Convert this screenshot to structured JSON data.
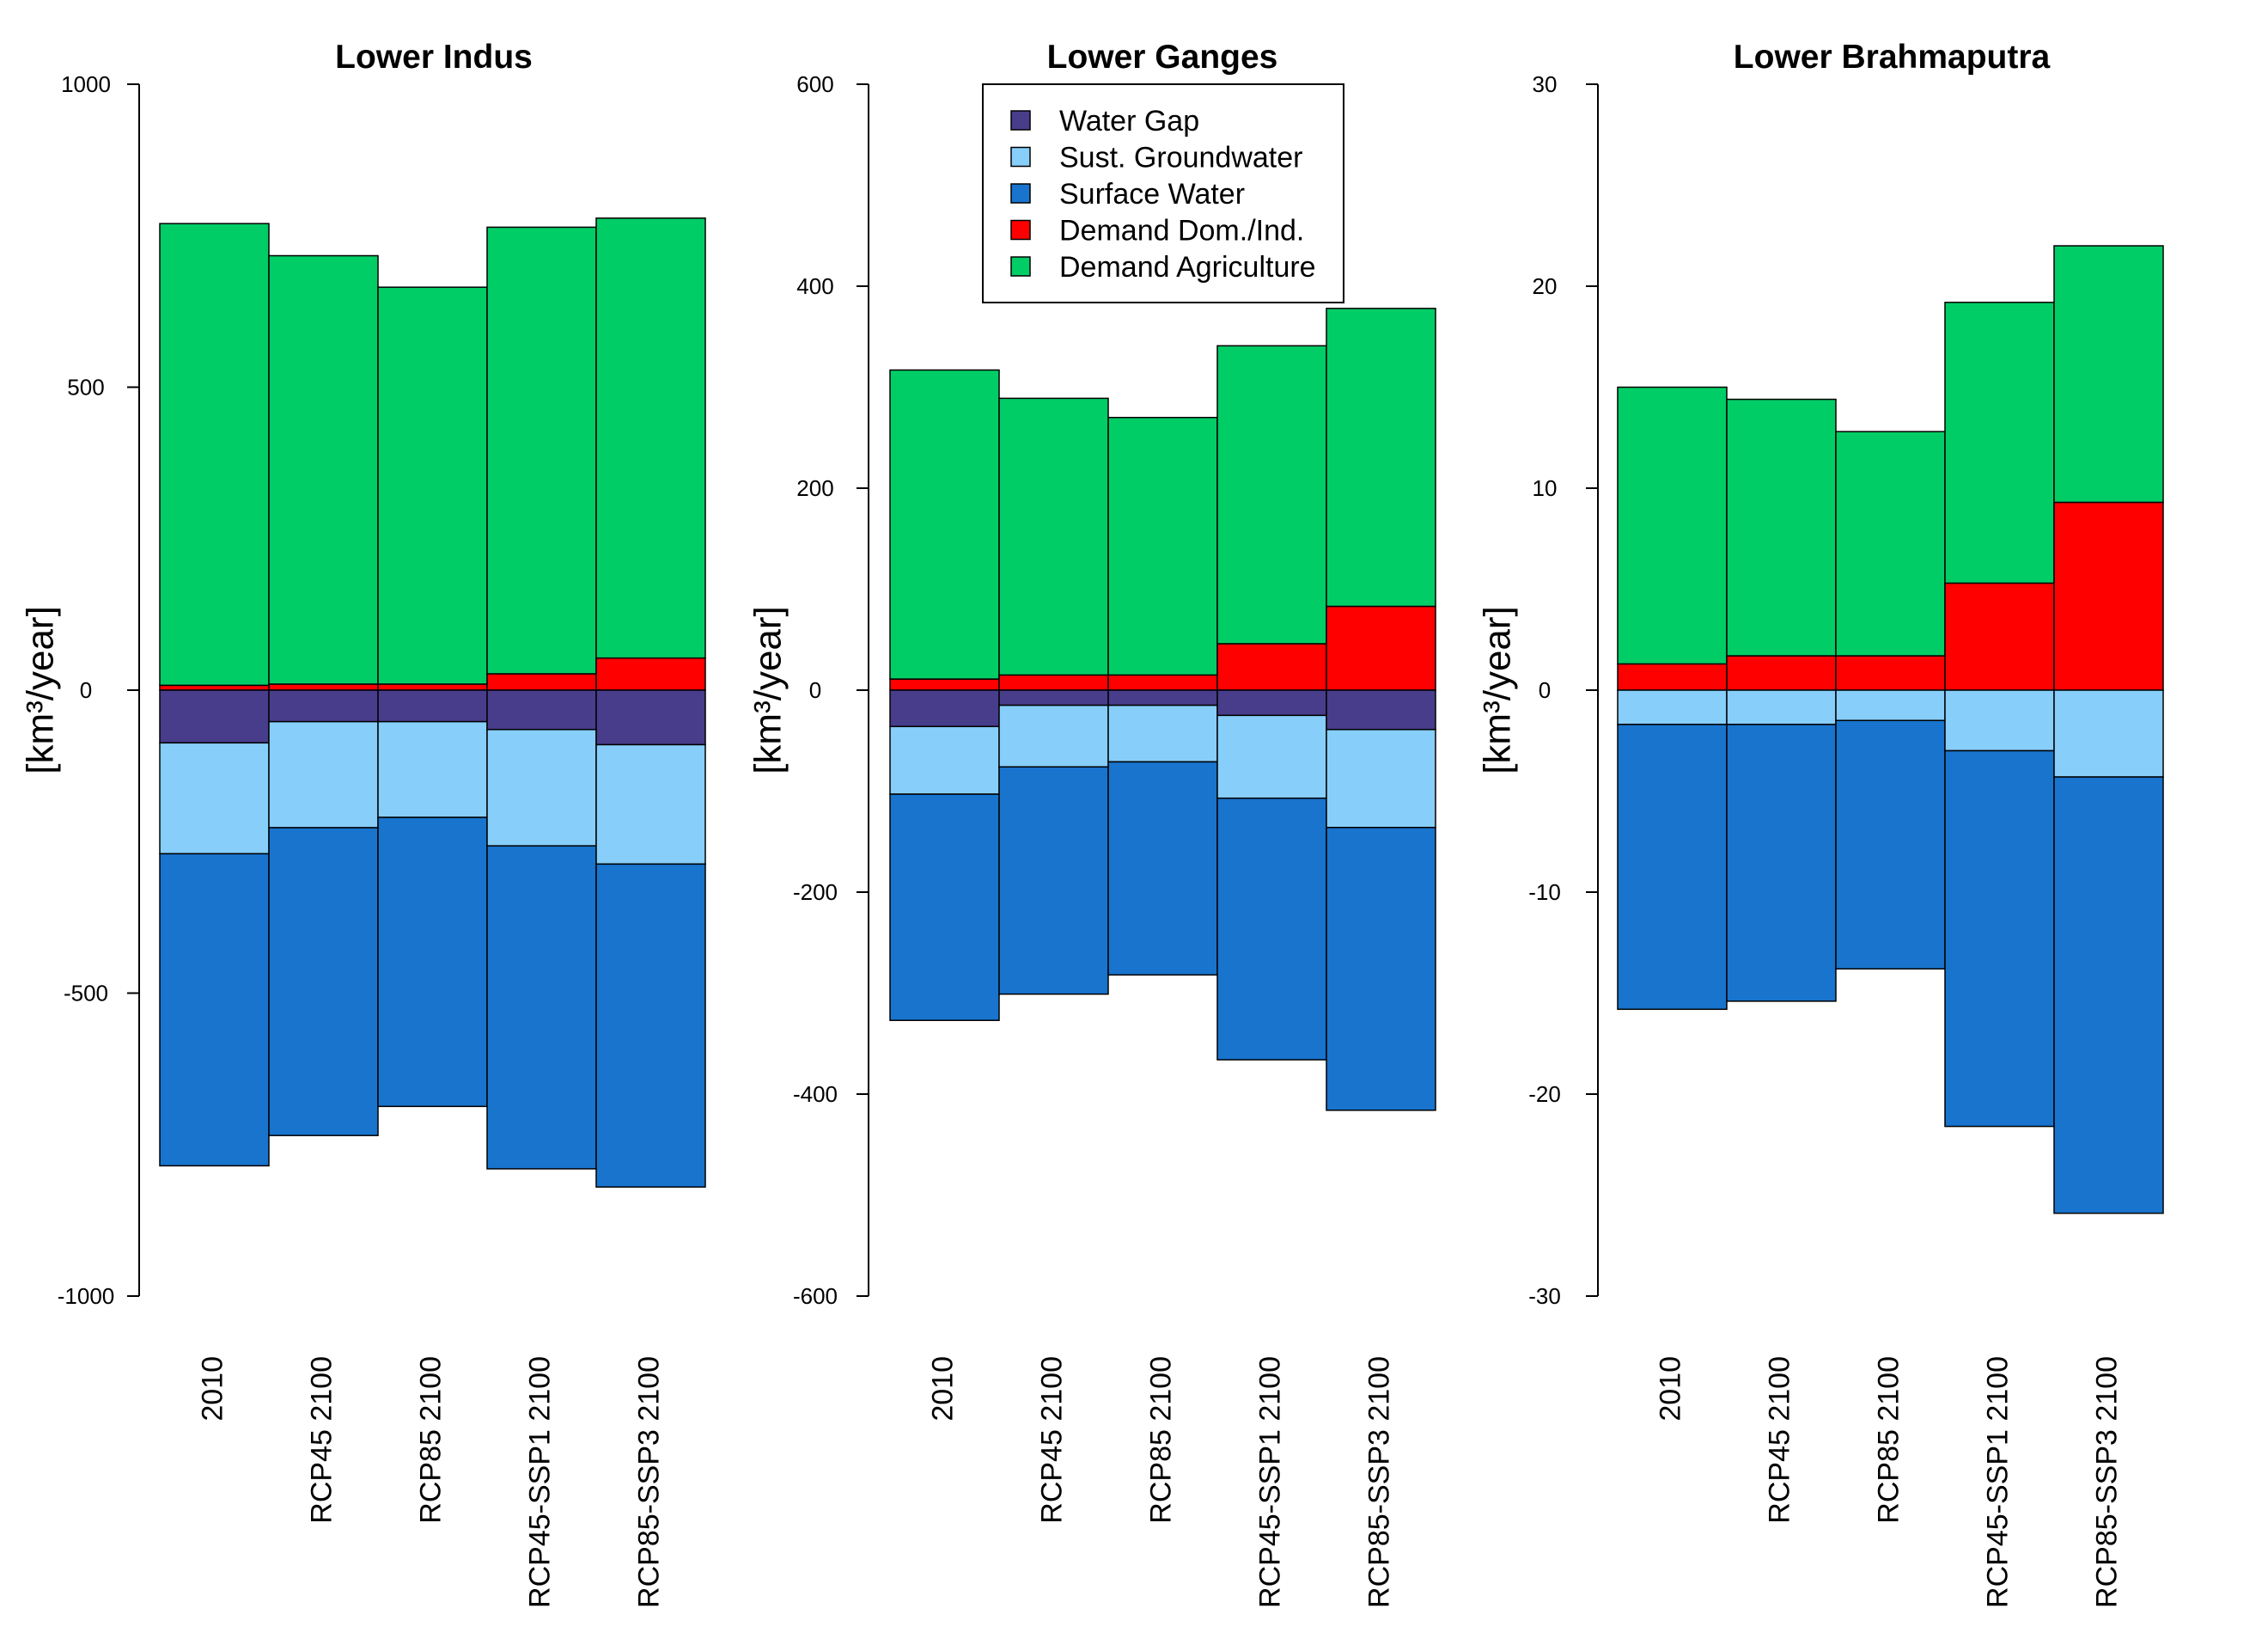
{
  "colors": {
    "water_gap": "#483D8B",
    "sust_groundwater": "#87CEFA",
    "surface_water": "#1874CD",
    "demand_dom_ind": "#FF0000",
    "demand_agriculture": "#00CD66"
  },
  "legend": {
    "entries": [
      {
        "key": "water_gap",
        "label": "Water Gap"
      },
      {
        "key": "sust_groundwater",
        "label": "Sust. Groundwater"
      },
      {
        "key": "surface_water",
        "label": "Surface Water"
      },
      {
        "key": "demand_dom_ind",
        "label": "Demand Dom./Ind."
      },
      {
        "key": "demand_agriculture",
        "label": "Demand Agriculture"
      }
    ]
  },
  "chart_data": [
    {
      "type": "bar",
      "stacked": true,
      "title": "Lower Indus",
      "ylabel": "[km³/year]",
      "ylim": [
        -1000,
        1000
      ],
      "yticks": [
        -1000,
        -500,
        0,
        500,
        1000
      ],
      "categories": [
        "2010",
        "RCP45 2100",
        "RCP85 2100",
        "RCP45-SSP1 2100",
        "RCP85-SSP3 2100"
      ],
      "series": [
        {
          "name": "Demand Dom./Ind.",
          "key": "demand_dom_ind",
          "values": [
            8,
            10,
            10,
            27,
            53
          ]
        },
        {
          "name": "Demand Agriculture",
          "key": "demand_agriculture",
          "values": [
            762,
            707,
            655,
            737,
            726
          ]
        },
        {
          "name": "Water Gap",
          "key": "water_gap",
          "values": [
            -87,
            -52,
            -52,
            -65,
            -90
          ]
        },
        {
          "name": "Sust. Groundwater",
          "key": "sust_groundwater",
          "values": [
            -183,
            -175,
            -158,
            -192,
            -197
          ]
        },
        {
          "name": "Surface Water",
          "key": "surface_water",
          "values": [
            -515,
            -508,
            -477,
            -533,
            -533
          ]
        }
      ]
    },
    {
      "type": "bar",
      "stacked": true,
      "title": "Lower Ganges",
      "ylabel": "[km³/year]",
      "ylim": [
        -600,
        600
      ],
      "yticks": [
        -600,
        -400,
        -200,
        0,
        200,
        400,
        600
      ],
      "categories": [
        "2010",
        "RCP45 2100",
        "RCP85 2100",
        "RCP45-SSP1 2100",
        "RCP85-SSP3 2100"
      ],
      "series": [
        {
          "name": "Demand Dom./Ind.",
          "key": "demand_dom_ind",
          "values": [
            11,
            15,
            15,
            46,
            83
          ]
        },
        {
          "name": "Demand Agriculture",
          "key": "demand_agriculture",
          "values": [
            306,
            274,
            255,
            295,
            295
          ]
        },
        {
          "name": "Water Gap",
          "key": "water_gap",
          "values": [
            -36,
            -15,
            -15,
            -25,
            -39
          ]
        },
        {
          "name": "Sust. Groundwater",
          "key": "sust_groundwater",
          "values": [
            -67,
            -61,
            -56,
            -82,
            -97
          ]
        },
        {
          "name": "Surface Water",
          "key": "surface_water",
          "values": [
            -224,
            -225,
            -211,
            -259,
            -280
          ]
        }
      ]
    },
    {
      "type": "bar",
      "stacked": true,
      "title": "Lower Brahmaputra",
      "ylabel": "[km³/year]",
      "ylim": [
        -30,
        30
      ],
      "yticks": [
        -30,
        -20,
        -10,
        0,
        10,
        20,
        30
      ],
      "categories": [
        "2010",
        "RCP45 2100",
        "RCP85 2100",
        "RCP45-SSP1 2100",
        "RCP85-SSP3 2100"
      ],
      "series": [
        {
          "name": "Demand Dom./Ind.",
          "key": "demand_dom_ind",
          "values": [
            1.3,
            1.7,
            1.7,
            5.3,
            9.3
          ]
        },
        {
          "name": "Demand Agriculture",
          "key": "demand_agriculture",
          "values": [
            13.7,
            12.7,
            11.1,
            13.9,
            12.7
          ]
        },
        {
          "name": "Water Gap",
          "key": "water_gap",
          "values": [
            0,
            0,
            0,
            0,
            0
          ]
        },
        {
          "name": "Sust. Groundwater",
          "key": "sust_groundwater",
          "values": [
            -1.7,
            -1.7,
            -1.5,
            -3.0,
            -4.3
          ]
        },
        {
          "name": "Surface Water",
          "key": "surface_water",
          "values": [
            -14.1,
            -13.7,
            -12.3,
            -18.6,
            -21.6
          ]
        }
      ]
    }
  ]
}
